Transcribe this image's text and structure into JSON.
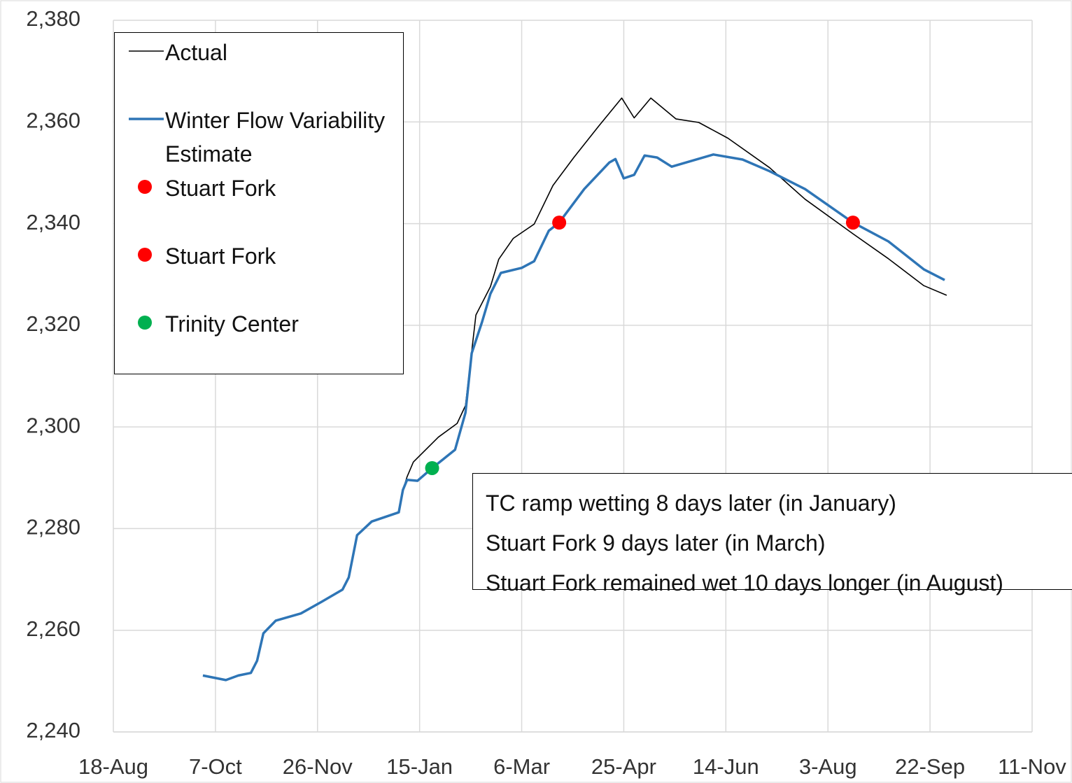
{
  "chart_data": {
    "type": "line",
    "xlim": [
      0,
      441
    ],
    "xticks": [
      {
        "value": 0,
        "label": "18-Aug"
      },
      {
        "value": 49,
        "label": "7-Oct"
      },
      {
        "value": 98,
        "label": "26-Nov"
      },
      {
        "value": 147,
        "label": "15-Jan"
      },
      {
        "value": 196,
        "label": "6-Mar"
      },
      {
        "value": 245,
        "label": "25-Apr"
      },
      {
        "value": 294,
        "label": "14-Jun"
      },
      {
        "value": 343,
        "label": "3-Aug"
      },
      {
        "value": 392,
        "label": "22-Sep"
      },
      {
        "value": 441,
        "label": "11-Nov"
      }
    ],
    "ylim": [
      2240,
      2380
    ],
    "yticks": [
      {
        "value": 2240,
        "label": "2,240"
      },
      {
        "value": 2260,
        "label": "2,260"
      },
      {
        "value": 2280,
        "label": "2,280"
      },
      {
        "value": 2300,
        "label": "2,300"
      },
      {
        "value": 2320,
        "label": "2,320"
      },
      {
        "value": 2340,
        "label": "2,340"
      },
      {
        "value": 2360,
        "label": "2,360"
      },
      {
        "value": 2380,
        "label": "2,380"
      }
    ],
    "grid": true,
    "series": [
      {
        "name": "Actual",
        "color": "#000000",
        "mode": "line",
        "x": [
          43,
          54,
          60,
          66,
          69,
          72,
          78,
          90,
          100,
          110,
          113,
          117,
          124,
          137,
          139,
          141,
          144,
          156,
          165,
          169,
          174,
          181,
          185,
          192,
          202,
          211,
          221,
          233,
          244,
          250,
          258,
          270,
          281,
          295,
          315,
          332,
          355,
          372,
          389,
          400
        ],
        "values": [
          2251.1,
          2250.2,
          2251.1,
          2251.6,
          2254,
          2259.4,
          2261.9,
          2263.3,
          2265.6,
          2268,
          2270.4,
          2278.7,
          2281.4,
          2283.2,
          2287.6,
          2290.2,
          2293.1,
          2298,
          2300.7,
          2304.2,
          2322,
          2327.6,
          2333,
          2337.1,
          2339.9,
          2347.5,
          2353,
          2359.2,
          2364.7,
          2360.8,
          2364.7,
          2360.6,
          2359.9,
          2356.8,
          2351,
          2344.8,
          2338,
          2333.1,
          2327.8,
          2325.9
        ]
      },
      {
        "name": "Winter Flow Variability Estimate",
        "color": "#2e75b6",
        "mode": "line",
        "x": [
          43,
          54,
          60,
          66,
          69,
          72,
          78,
          90,
          100,
          110,
          113,
          117,
          124,
          137,
          139,
          141,
          146,
          153,
          164,
          169,
          172,
          177,
          181,
          186,
          196,
          202,
          209,
          214,
          226,
          238,
          241,
          245,
          250,
          255,
          261,
          268,
          288,
          302,
          315,
          332,
          355,
          372,
          389,
          399
        ],
        "values": [
          2251.1,
          2250.2,
          2251.1,
          2251.6,
          2254,
          2259.4,
          2261.9,
          2263.3,
          2265.6,
          2268,
          2270.4,
          2278.7,
          2281.4,
          2283.2,
          2287.6,
          2289.6,
          2289.4,
          2291.9,
          2295.5,
          2302.8,
          2314.5,
          2320.7,
          2326.2,
          2330.3,
          2331.3,
          2332.6,
          2338.6,
          2340.2,
          2346.8,
          2352,
          2352.7,
          2348.9,
          2349.6,
          2353.4,
          2353,
          2351.2,
          2353.6,
          2352.6,
          2350.3,
          2346.8,
          2340.2,
          2336.5,
          2331,
          2328.9
        ]
      },
      {
        "name": "Stuart Fork",
        "color": "#ff0000",
        "mode": "marker",
        "x": [
          214
        ],
        "values": [
          2340.2
        ]
      },
      {
        "name": "Stuart Fork",
        "color": "#ff0000",
        "mode": "marker",
        "x": [
          355
        ],
        "values": [
          2340.2
        ]
      },
      {
        "name": "Trinity Center",
        "color": "#00b050",
        "mode": "marker",
        "x": [
          153
        ],
        "values": [
          2291.9
        ]
      }
    ],
    "annotation": [
      "TC ramp wetting 8 days later (in January)",
      "Stuart Fork 9 days later (in March)",
      "Stuart Fork remained wet 10 days longer (in August)"
    ]
  }
}
